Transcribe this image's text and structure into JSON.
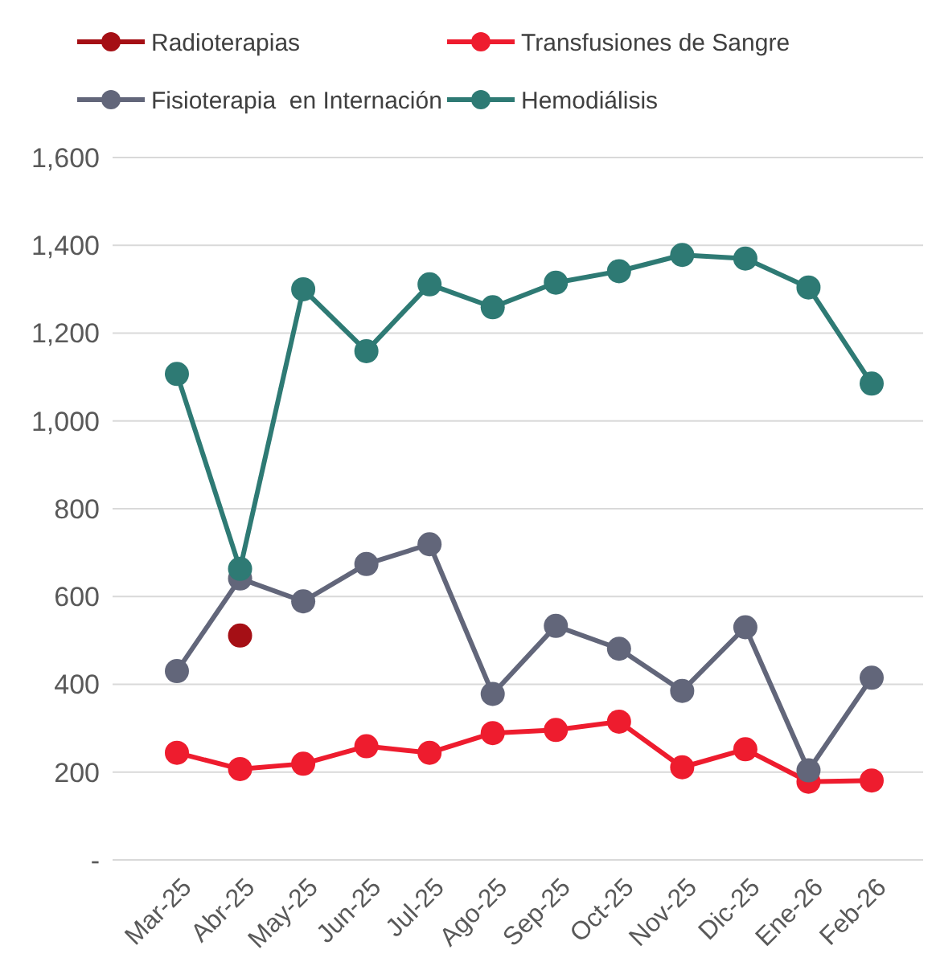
{
  "chart_data": {
    "type": "line",
    "categories": [
      "Mar-25",
      "Abr-25",
      "May-25",
      "Jun-25",
      "Jul-25",
      "Ago-25",
      "Sep-25",
      "Oct-25",
      "Nov-25",
      "Dic-25",
      "Ene-26",
      "Feb-26"
    ],
    "series": [
      {
        "name": "Radioterapias",
        "type": "scatter",
        "color": "#a50f15",
        "values": [
          null,
          511,
          null,
          null,
          null,
          null,
          null,
          null,
          null,
          null,
          null,
          null
        ]
      },
      {
        "name": "Transfusiones de Sangre",
        "color": "#ee1c2e",
        "values": [
          244,
          207,
          219,
          259,
          244,
          289,
          296,
          315,
          211,
          252,
          178,
          181
        ]
      },
      {
        "name": "Fisioterapia  en Internación",
        "color": "#62667a",
        "values": [
          430,
          641,
          589,
          674,
          719,
          378,
          533,
          481,
          385,
          530,
          204,
          415
        ]
      },
      {
        "name": "Hemodiálisis",
        "color": "#2e7a74",
        "values": [
          1107,
          663,
          1300,
          1159,
          1311,
          1259,
          1315,
          1341,
          1378,
          1370,
          1304,
          1085
        ]
      }
    ],
    "ylim": [
      0,
      1600
    ],
    "yticks": [
      {
        "value": 0,
        "label": "-"
      },
      {
        "value": 200,
        "label": "200"
      },
      {
        "value": 400,
        "label": "400"
      },
      {
        "value": 600,
        "label": "600"
      },
      {
        "value": 800,
        "label": "800"
      },
      {
        "value": 1000,
        "label": "1,000"
      },
      {
        "value": 1200,
        "label": "1,200"
      },
      {
        "value": 1400,
        "label": "1,400"
      },
      {
        "value": 1600,
        "label": "1,600"
      }
    ],
    "grid": "y",
    "legend": "top",
    "marker": "circle",
    "line_style": "solid"
  }
}
